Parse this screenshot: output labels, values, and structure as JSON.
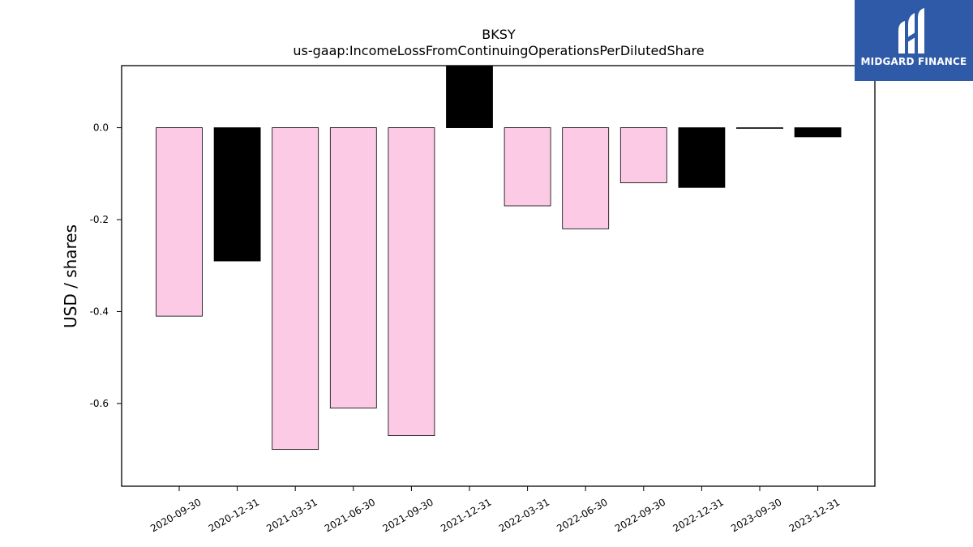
{
  "chart_data": {
    "type": "bar",
    "title": "BKSY",
    "subtitle": "us-gaap:IncomeLossFromContinuingOperationsPerDilutedShare",
    "ylabel": "USD / shares",
    "xlabel": "",
    "ylim": [
      -0.78,
      0.135
    ],
    "yticks": [
      "0.0",
      "-0.2",
      "-0.4",
      "-0.6"
    ],
    "ytick_values": [
      0.0,
      -0.2,
      -0.4,
      -0.6
    ],
    "categories": [
      "2020-09-30",
      "2020-12-31",
      "2021-03-31",
      "2021-06-30",
      "2021-09-30",
      "2021-12-31",
      "2022-03-31",
      "2022-06-30",
      "2022-09-30",
      "2022-12-31",
      "2023-09-30",
      "2023-12-31"
    ],
    "values": [
      -0.41,
      -0.29,
      -0.7,
      -0.61,
      -0.67,
      0.14,
      -0.17,
      -0.22,
      -0.12,
      -0.13,
      0.0,
      -0.02
    ],
    "bar_colors": [
      "#fdcae5",
      "#000000",
      "#fdcae5",
      "#fdcae5",
      "#fdcae5",
      "#000000",
      "#fdcae5",
      "#fdcae5",
      "#fdcae5",
      "#000000",
      "#fdcae5",
      "#000000"
    ],
    "grid": false,
    "legend": "none"
  },
  "logo": {
    "text": "MIDGARD FINANCE",
    "background": "#2f5aa8"
  }
}
